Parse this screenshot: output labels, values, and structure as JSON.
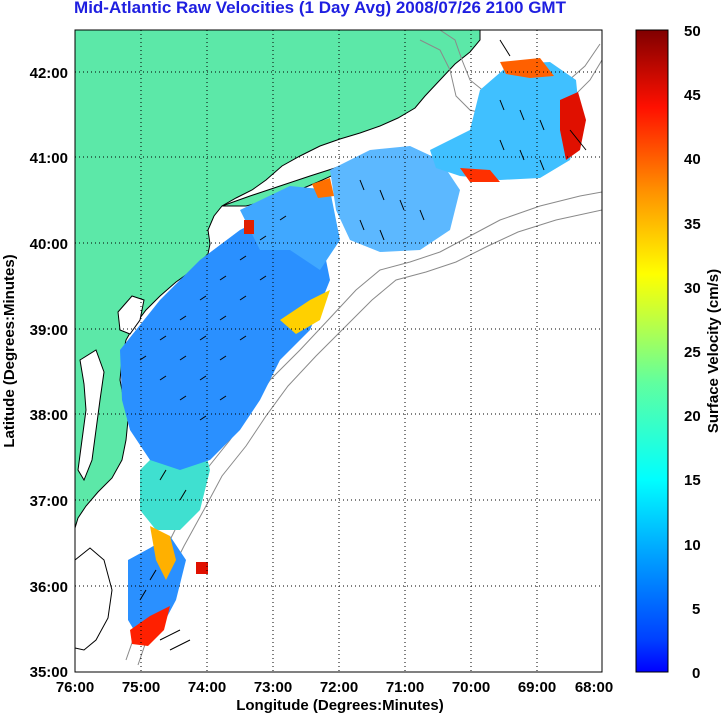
{
  "title": "Mid-Atlantic Raw Velocities (1 Day Avg) 2008/07/26 2100 GMT",
  "xlabel": "Longitude (Degrees:Minutes)",
  "ylabel": "Latitude (Degrees:Minutes)",
  "x_ticks": [
    "76:00",
    "75:00",
    "74:00",
    "73:00",
    "72:00",
    "71:00",
    "70:00",
    "69:00",
    "68:00"
  ],
  "y_ticks": [
    "42:00",
    "41:00",
    "40:00",
    "39:00",
    "38:00",
    "37:00",
    "36:00",
    "35:00"
  ],
  "colorbar": {
    "label": "Surface Velocity (cm/s)",
    "ticks": [
      "50",
      "45",
      "40",
      "35",
      "30",
      "25",
      "20",
      "15",
      "10",
      "5",
      "0"
    ],
    "min": 0,
    "max": 50,
    "colormap": "jet"
  },
  "colors": {
    "land": "#5ce8a8",
    "coastline": "#000000",
    "bathymetry": "#8a8a8a",
    "title": "#1f1fe0",
    "grid": "#000000"
  },
  "map_extent": {
    "lon": [
      -76,
      -68
    ],
    "lat": [
      35,
      42.5
    ]
  }
}
